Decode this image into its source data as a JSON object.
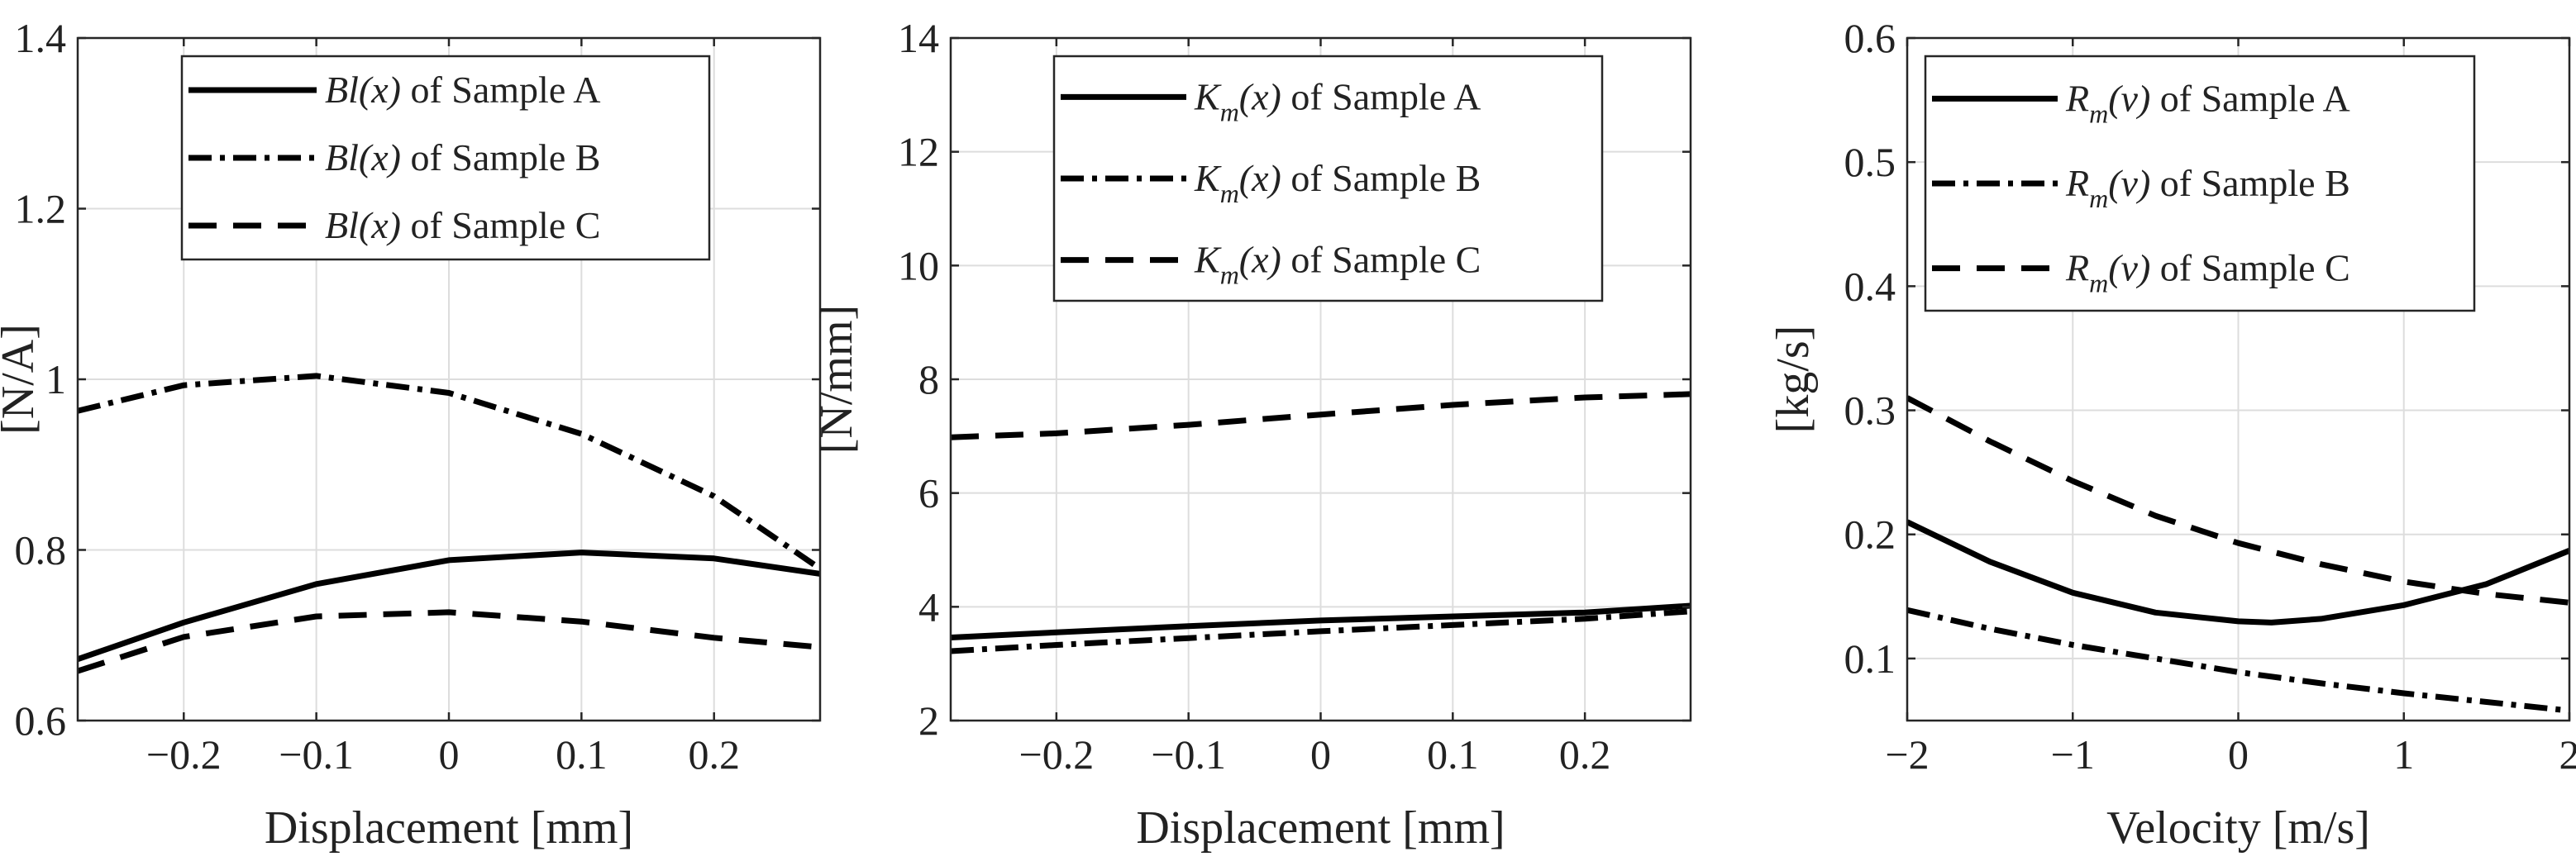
{
  "chart_data": [
    {
      "type": "line",
      "id": "bl",
      "xlabel": "Displacement [mm]",
      "ylabel": "[N/A]",
      "xlim": [
        -0.28,
        0.28
      ],
      "ylim": [
        0.6,
        1.4
      ],
      "xticks": [
        -0.2,
        -0.1,
        0,
        0.1,
        0.2
      ],
      "xtick_labels": [
        "−0.2",
        "−0.1",
        "0",
        "0.1",
        "0.2"
      ],
      "yticks": [
        0.6,
        0.8,
        1,
        1.2,
        1.4
      ],
      "ytick_labels": [
        "0.6",
        "0.8",
        "1",
        "1.2",
        "1.4"
      ],
      "grid": true,
      "legend_position": "top-right",
      "series": [
        {
          "name": "Bl(x) of Sample A",
          "symbol": "Bl(x)",
          "sub": "",
          "suffix": "of Sample A",
          "style": "solid",
          "x": [
            -0.28,
            -0.2,
            -0.1,
            0,
            0.1,
            0.2,
            0.28
          ],
          "y": [
            0.672,
            0.715,
            0.76,
            0.788,
            0.797,
            0.79,
            0.772
          ]
        },
        {
          "name": "Bl(x) of Sample B",
          "symbol": "Bl(x)",
          "sub": "",
          "suffix": "of Sample B",
          "style": "dashdot",
          "x": [
            -0.28,
            -0.2,
            -0.1,
            0,
            0.1,
            0.2,
            0.28
          ],
          "y": [
            0.963,
            0.993,
            1.004,
            0.984,
            0.936,
            0.863,
            0.778
          ]
        },
        {
          "name": "Bl(x) of Sample C",
          "symbol": "Bl(x)",
          "sub": "",
          "suffix": "of Sample C",
          "style": "dashed",
          "x": [
            -0.28,
            -0.2,
            -0.1,
            0,
            0.1,
            0.2,
            0.28
          ],
          "y": [
            0.658,
            0.698,
            0.722,
            0.727,
            0.716,
            0.697,
            0.686
          ]
        }
      ]
    },
    {
      "type": "line",
      "id": "km",
      "xlabel": "Displacement [mm]",
      "ylabel": "[N/mm]",
      "xlim": [
        -0.28,
        0.28
      ],
      "ylim": [
        2,
        14
      ],
      "xticks": [
        -0.2,
        -0.1,
        0,
        0.1,
        0.2
      ],
      "xtick_labels": [
        "−0.2",
        "−0.1",
        "0",
        "0.1",
        "0.2"
      ],
      "yticks": [
        2,
        4,
        6,
        8,
        10,
        12,
        14
      ],
      "ytick_labels": [
        "2",
        "4",
        "6",
        "8",
        "10",
        "12",
        "14"
      ],
      "grid": true,
      "legend_position": "top-right",
      "series": [
        {
          "name": "Km(x) of Sample A",
          "symbol": "K",
          "sub": "m",
          "suffix_italic": "(x)",
          "suffix": "of Sample A",
          "style": "solid",
          "x": [
            -0.28,
            -0.2,
            -0.1,
            0,
            0.1,
            0.2,
            0.28
          ],
          "y": [
            3.46,
            3.55,
            3.66,
            3.76,
            3.83,
            3.9,
            4.02
          ]
        },
        {
          "name": "Km(x) of Sample B",
          "symbol": "K",
          "sub": "m",
          "suffix_italic": "(x)",
          "suffix": "of Sample B",
          "style": "dashdot",
          "x": [
            -0.28,
            -0.2,
            -0.1,
            0,
            0.1,
            0.2,
            0.28
          ],
          "y": [
            3.22,
            3.33,
            3.45,
            3.57,
            3.68,
            3.79,
            3.92
          ]
        },
        {
          "name": "Km(x) of Sample C",
          "symbol": "K",
          "sub": "m",
          "suffix_italic": "(x)",
          "suffix": "of Sample C",
          "style": "dashed",
          "x": [
            -0.28,
            -0.2,
            -0.1,
            0,
            0.1,
            0.2,
            0.28
          ],
          "y": [
            6.98,
            7.05,
            7.2,
            7.38,
            7.55,
            7.68,
            7.74
          ]
        }
      ]
    },
    {
      "type": "line",
      "id": "rm",
      "xlabel": "Velocity [m/s]",
      "ylabel": "[kg/s]",
      "xlim": [
        -2,
        2
      ],
      "ylim": [
        0.05,
        0.6
      ],
      "xticks": [
        -2,
        -1,
        0,
        1,
        2
      ],
      "xtick_labels": [
        "−2",
        "−1",
        "0",
        "1",
        "2"
      ],
      "yticks": [
        0.1,
        0.2,
        0.3,
        0.4,
        0.5,
        0.6
      ],
      "ytick_labels": [
        "0.1",
        "0.2",
        "0.3",
        "0.4",
        "0.5",
        "0.6"
      ],
      "grid": true,
      "legend_position": "top-right",
      "series": [
        {
          "name": "Rm(v) of Sample A",
          "symbol": "R",
          "sub": "m",
          "suffix_italic": "(v)",
          "suffix": "of Sample A",
          "style": "solid",
          "x": [
            -2,
            -1.5,
            -1,
            -0.5,
            0,
            0.2,
            0.5,
            1,
            1.5,
            2
          ],
          "y": [
            0.21,
            0.178,
            0.153,
            0.137,
            0.13,
            0.129,
            0.132,
            0.143,
            0.16,
            0.187
          ]
        },
        {
          "name": "Rm(v) of Sample B",
          "symbol": "R",
          "sub": "m",
          "suffix_italic": "(v)",
          "suffix": "of Sample B",
          "style": "dashdot",
          "x": [
            -2,
            -1.5,
            -1,
            -0.5,
            0,
            0.5,
            1,
            1.5,
            2
          ],
          "y": [
            0.139,
            0.124,
            0.111,
            0.1,
            0.089,
            0.08,
            0.072,
            0.065,
            0.058
          ]
        },
        {
          "name": "Rm(v) of Sample C",
          "symbol": "R",
          "sub": "m",
          "suffix_italic": "(v)",
          "suffix": "of Sample C",
          "style": "dashed",
          "x": [
            -2,
            -1.5,
            -1,
            -0.5,
            0,
            0.5,
            1,
            1.5,
            2
          ],
          "y": [
            0.31,
            0.275,
            0.243,
            0.215,
            0.193,
            0.176,
            0.162,
            0.152,
            0.145
          ]
        }
      ]
    }
  ]
}
